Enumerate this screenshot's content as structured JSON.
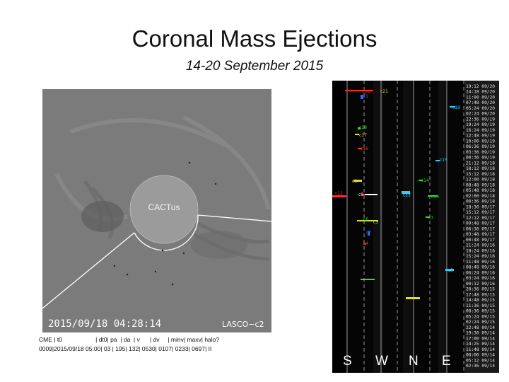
{
  "slide": {
    "title": "Coronal Mass Ejections",
    "subtitle": "14-20 September 2015"
  },
  "lasco_image": {
    "center_label": "CACTus",
    "timestamp": "2015/09/18 04:28:14",
    "instrument": "LASCO−c2",
    "background_color": "#7b7b7b"
  },
  "cme_table": {
    "header": "CME | t0                    | dt0| pa  | da  | v      | dv     | minv| maxv| halo?",
    "row": "0009|2015/09/18 05:00| 03 | 195| 132| 0530| 0107| 0233| 0697| II"
  },
  "jmap": {
    "directions": [
      "S",
      "W",
      "N",
      "E"
    ],
    "timestamps": [
      "19:12 09/20",
      "14:18 09/20",
      "11:00 09/20",
      "07:48 09/20",
      "05:24 09/20",
      "02:24 09/20",
      "22:36 09/19",
      "19:24 09/19",
      "16:24 09/19",
      "12:48 09/19",
      "10:00 09/19",
      "06:36 09/19",
      "03:36 09/19",
      "00:36 09/19",
      "21:12 09/18",
      "18:12 09/18",
      "15:12 09/18",
      "12:00 09/18",
      "08:48 09/18",
      "05:48 09/18",
      "02:00 09/18",
      "00:36 09/18",
      "18:36 09/17",
      "15:12 09/17",
      "12:12 09/17",
      "09:48 09/17",
      "06:36 09/17",
      "03:48 09/17",
      "00:48 09/17",
      "21:24 09/16",
      "18:24 09/16",
      "15:24 09/16",
      "11:48 09/16",
      "08:48 09/16",
      "06:24 09/16",
      "03:24 09/16",
      "00:12 09/16",
      "20:36 09/15",
      "17:48 09/15",
      "14:48 09/15",
      "11:36 09/15",
      "08:36 09/15",
      "05:24 09/15",
      "02:24 09/15",
      "22:48 09/14",
      "19:30 09/14",
      "17:00 09/14",
      "14:25 09/14",
      "11:48 09/14",
      "08:00 09/14",
      "05:12 09/14",
      "02:36 09/14"
    ],
    "cme_labels": [
      {
        "id": "c20",
        "color": "#ff3333"
      },
      {
        "id": "c21",
        "color": "#dddd33"
      },
      {
        "id": "c19",
        "color": "#33ccff"
      },
      {
        "id": "c18",
        "color": "#33dd33"
      },
      {
        "id": "c17",
        "color": "#dddd33"
      },
      {
        "id": "c16",
        "color": "#ff3333"
      },
      {
        "id": "c15",
        "color": "#33ccff"
      },
      {
        "id": "c14",
        "color": "#33dd33"
      },
      {
        "id": "c13",
        "color": "#33ccff"
      },
      {
        "id": "c12",
        "color": "#ff3333"
      },
      {
        "id": "c11",
        "color": "#33ccff"
      },
      {
        "id": "c10",
        "color": "#33dd33"
      },
      {
        "id": "c9",
        "color": "#ffffff"
      },
      {
        "id": "c8",
        "color": "#dddd33"
      },
      {
        "id": "c7",
        "color": "#33dd33"
      },
      {
        "id": "c6",
        "color": "#33dd33"
      },
      {
        "id": "c5",
        "color": "#dddd33"
      },
      {
        "id": "c4",
        "color": "#ff3333"
      },
      {
        "id": "c3",
        "color": "#33ccff"
      },
      {
        "id": "c2",
        "color": "#3366ff"
      },
      {
        "id": "c1",
        "color": "#3366ff"
      }
    ]
  }
}
